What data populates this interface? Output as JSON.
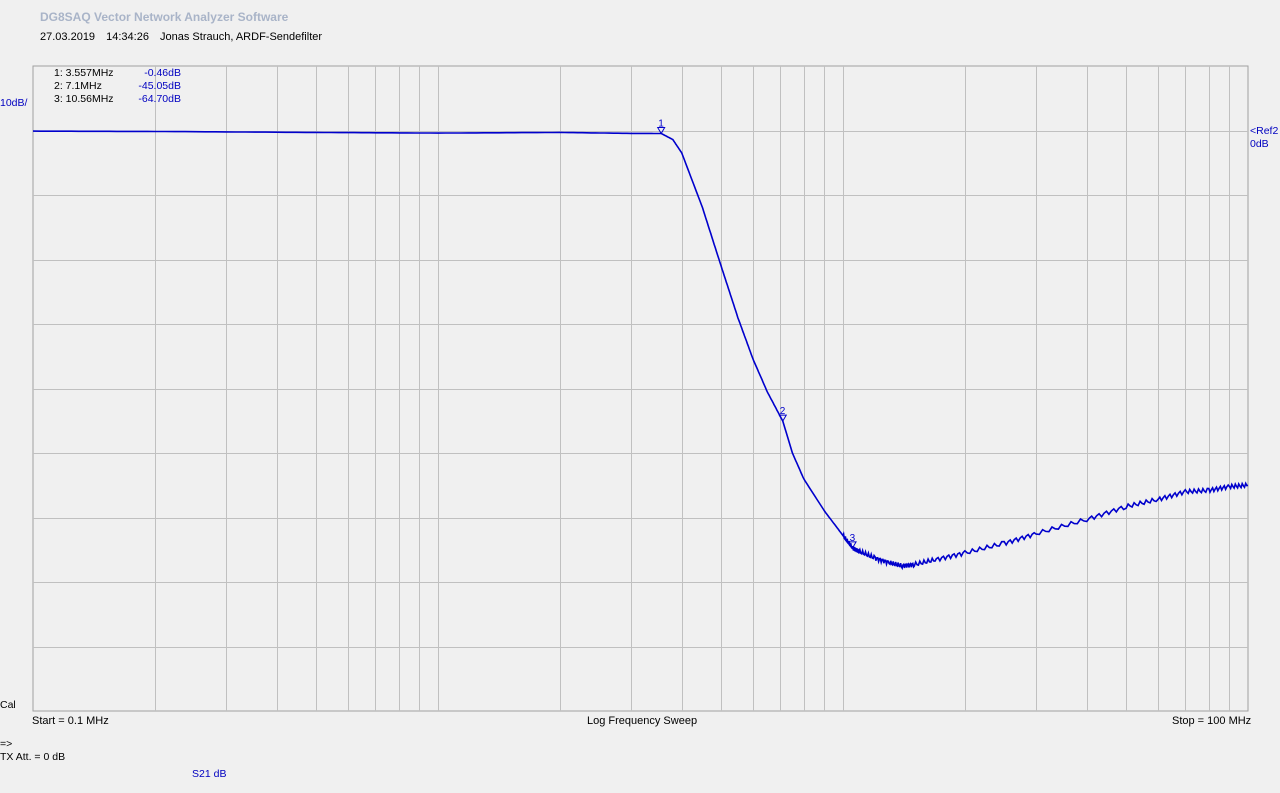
{
  "app_title": "DG8SAQ Vector Network Analyzer Software",
  "subtitle": {
    "date": "27.03.2019",
    "time": "14:34:26",
    "description": "Jonas Strauch, ARDF-Sendefilter"
  },
  "markers": [
    {
      "label": "1: 3.557MHz",
      "value": "-0.46dB",
      "num": "1",
      "freq_mhz": 3.557,
      "db": -0.46
    },
    {
      "label": "2: 7.1MHz",
      "value": "-45.05dB",
      "num": "2",
      "freq_mhz": 7.1,
      "db": -45.05
    },
    {
      "label": "3: 10.56MHz",
      "value": "-64.70dB",
      "num": "3",
      "freq_mhz": 10.56,
      "db": -64.7
    }
  ],
  "scale_label": "10dB/",
  "ref_label": {
    "line1": "<Ref2",
    "line2": "0dB"
  },
  "cal_label": "Cal",
  "start_label": "Start = 0.1 MHz",
  "sweep_label": "Log Frequency Sweep",
  "stop_label": "Stop = 100 MHz",
  "arrow_label": "=>",
  "tx_att_label": "TX Att.   = 0 dB",
  "trace_label": "S21  dB",
  "colors": {
    "trace": "#0000cc",
    "grid": "#c0c0c0",
    "plot_bg": "#f0f0f0",
    "title": "#a9b4c8"
  },
  "chart_data": {
    "type": "line",
    "x_scale": "log",
    "xlim": [
      0.1,
      100
    ],
    "ylim": [
      -90,
      10
    ],
    "y_reference_db": 0,
    "y_divisions": 10,
    "y_db_per_division": 10,
    "grid": true,
    "series": [
      {
        "name": "S21  dB",
        "x": [
          0.1,
          0.2,
          0.5,
          1,
          2,
          3,
          3.557,
          3.8,
          4,
          4.5,
          5,
          5.5,
          6,
          6.5,
          7.1,
          7.5,
          8,
          9,
          10,
          10.56,
          11,
          12,
          13,
          14,
          15,
          17,
          20,
          25,
          30,
          40,
          50,
          60,
          70,
          80,
          90,
          100
        ],
        "y": [
          -0.1,
          -0.15,
          -0.3,
          -0.4,
          -0.3,
          -0.45,
          -0.46,
          -1.4,
          -3.5,
          -12,
          -21,
          -29,
          -35.5,
          -40.5,
          -45.05,
          -50,
          -54,
          -59,
          -62.8,
          -64.7,
          -65.3,
          -66.3,
          -67,
          -67.5,
          -67.3,
          -66.5,
          -65.5,
          -64,
          -62.5,
          -60.3,
          -58.3,
          -57.2,
          -56,
          -55.8,
          -55.2,
          -55
        ]
      }
    ]
  }
}
